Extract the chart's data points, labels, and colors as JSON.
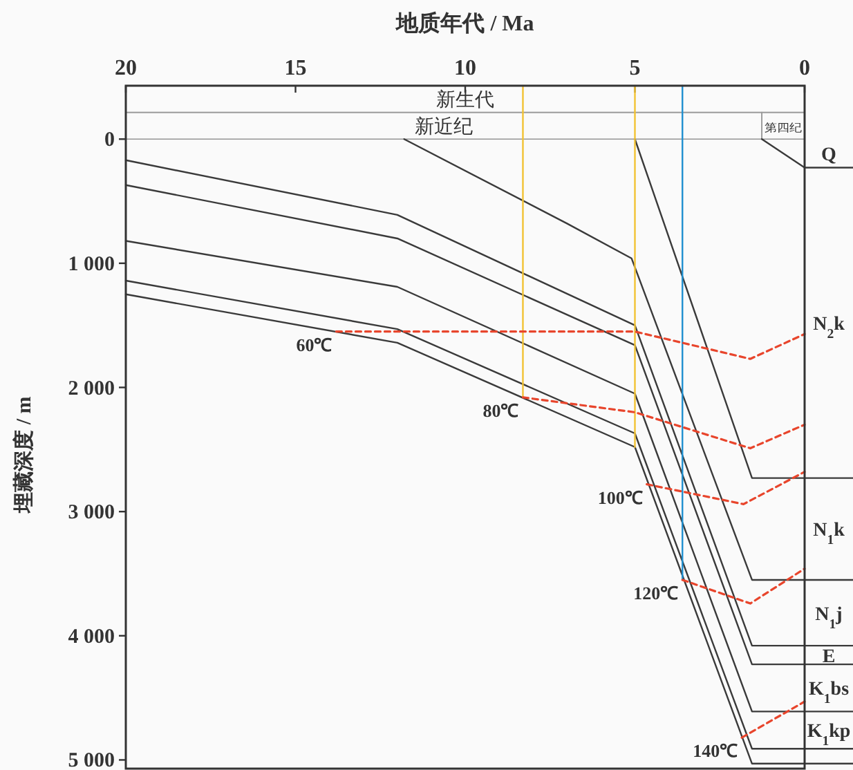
{
  "chart_data": {
    "type": "line",
    "xlabel": "地质年代 / Ma",
    "ylabel": "埋藏深度 / m",
    "xlim": [
      20,
      0
    ],
    "xticks": [
      20,
      15,
      10,
      5,
      0
    ],
    "ylim": [
      5070,
      -430
    ],
    "yticks": [
      0,
      {
        "value": 1000,
        "label": "1 000"
      },
      {
        "value": 2000,
        "label": "2 000"
      },
      {
        "value": 3000,
        "label": "3 000"
      },
      {
        "value": 4000,
        "label": "4 000"
      },
      {
        "value": 5000,
        "label": "5 000"
      }
    ],
    "annotations": [
      "新生代",
      "新近纪",
      "第四纪",
      "Q",
      "N$_{2}$k",
      "N$_{1}$k",
      "N$_{1}$j",
      "E",
      "K$_{1}$bs",
      "K$_{1}$kp"
    ],
    "series": [
      {
        "color": "#3a3a3a",
        "x": [
          1.26,
          0
        ],
        "values": [
          0,
          230
        ]
      },
      {
        "color": "#3a3a3a",
        "x": [
          5,
          1.55,
          0
        ],
        "values": [
          0,
          2730,
          2730
        ]
      },
      {
        "color": "#3a3a3a",
        "x": [
          11.8,
          7,
          5.1,
          1.55,
          0
        ],
        "values": [
          0,
          680,
          960,
          3550,
          3550
        ]
      },
      {
        "color": "#3a3a3a",
        "x": [
          20,
          12,
          5,
          1.55,
          0
        ],
        "values": [
          170,
          610,
          1500,
          4080,
          4080
        ]
      },
      {
        "color": "#3a3a3a",
        "x": [
          20,
          12,
          5,
          1.55,
          0
        ],
        "values": [
          370,
          800,
          1660,
          4230,
          4230
        ]
      },
      {
        "color": "#3a3a3a",
        "x": [
          20,
          12,
          5,
          1.55,
          0
        ],
        "values": [
          820,
          1190,
          2050,
          4610,
          4610
        ]
      },
      {
        "color": "#3a3a3a",
        "x": [
          20,
          12,
          5,
          1.55,
          0
        ],
        "values": [
          1140,
          1530,
          2370,
          4910,
          4910
        ]
      },
      {
        "color": "#3a3a3a",
        "x": [
          20,
          12,
          5,
          1.55,
          0
        ],
        "values": [
          1250,
          1640,
          2480,
          5030,
          5030
        ]
      },
      {
        "color": "#f2c232",
        "x": [
          8.3,
          8.3
        ],
        "values": [
          -430,
          2080
        ]
      },
      {
        "color": "#f2c232",
        "x": [
          5,
          5
        ],
        "values": [
          -430,
          2480
        ]
      },
      {
        "color": "#1f8fd0",
        "x": [
          3.6,
          3.6
        ],
        "values": [
          -430,
          3550
        ]
      },
      {
        "name": "60℃",
        "color": "#e8452c",
        "line_style": "dashed",
        "x": [
          13.8,
          5,
          1.6,
          0
        ],
        "values": [
          1550,
          1550,
          1770,
          1570
        ]
      },
      {
        "name": "80℃",
        "color": "#e8452c",
        "line_style": "dashed",
        "x": [
          8.3,
          5,
          1.6,
          0
        ],
        "values": [
          2080,
          2200,
          2490,
          2300
        ]
      },
      {
        "name": "100℃",
        "color": "#e8452c",
        "line_style": "dashed",
        "x": [
          4.65,
          1.8,
          0
        ],
        "values": [
          2780,
          2940,
          2680
        ]
      },
      {
        "name": "120℃",
        "color": "#e8452c",
        "line_style": "dashed",
        "x": [
          3.6,
          1.6,
          0
        ],
        "values": [
          3550,
          3740,
          3460
        ]
      },
      {
        "name": "140℃",
        "color": "#e8452c",
        "line_style": "dashed",
        "x": [
          1.85,
          0
        ],
        "values": [
          4820,
          4530
        ]
      }
    ]
  }
}
